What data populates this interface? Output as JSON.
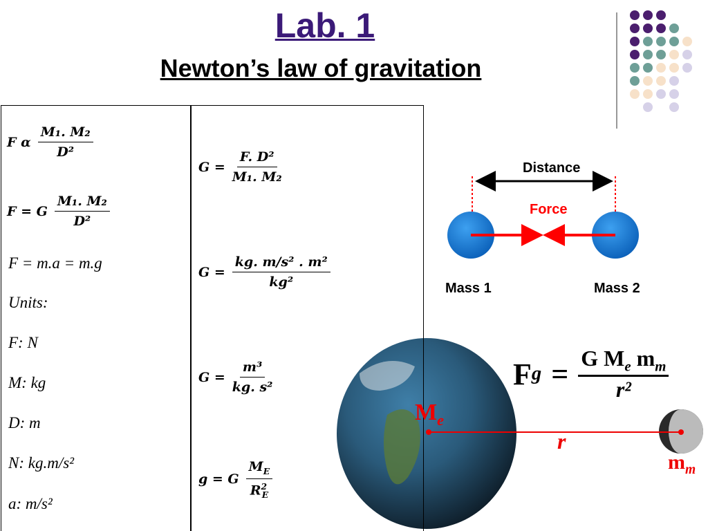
{
  "header": {
    "title": "Lab. 1",
    "subtitle": "Newton’s law of gravitation"
  },
  "left_formulas": [
    {
      "lhs": "F α",
      "num": "M₁. M₂",
      "den": "D²"
    },
    {
      "lhs": "F = G",
      "num": "M₁. M₂",
      "den": "D²"
    }
  ],
  "left_lines": [
    "F = m.a = m.g",
    "Units:",
    "F: N",
    "M: kg",
    "D: m",
    "N: kg.m/s²",
    "a: m/s²"
  ],
  "middle_formulas": [
    {
      "lhs": "G =",
      "num": "F. D²",
      "den": "M₁. M₂"
    },
    {
      "lhs": "G =",
      "num": "kg. m/s² . m²",
      "den": "kg²"
    },
    {
      "lhs": "G =",
      "num": "m³",
      "den": "kg. s²"
    }
  ],
  "last_formula": {
    "lhs": "g = G",
    "num_base": "M",
    "num_sub": "E",
    "den_base": "R",
    "den_sub": "E",
    "den_sup": "2"
  },
  "diagram": {
    "distance": "Distance",
    "force": "Force",
    "mass1": "Mass 1",
    "mass2": "Mass 2"
  },
  "earth_moon": {
    "formula": {
      "lhs_base": "F",
      "lhs_sub": "g",
      "eq": "=",
      "num_a": "G M",
      "num_a_sub": "e",
      "num_b": " m",
      "num_b_sub": "m",
      "den": "r²"
    },
    "earth_label": {
      "base": "M",
      "sub": "e"
    },
    "distance_label": "r",
    "moon_label": {
      "base": "m",
      "sub": "m"
    }
  }
}
